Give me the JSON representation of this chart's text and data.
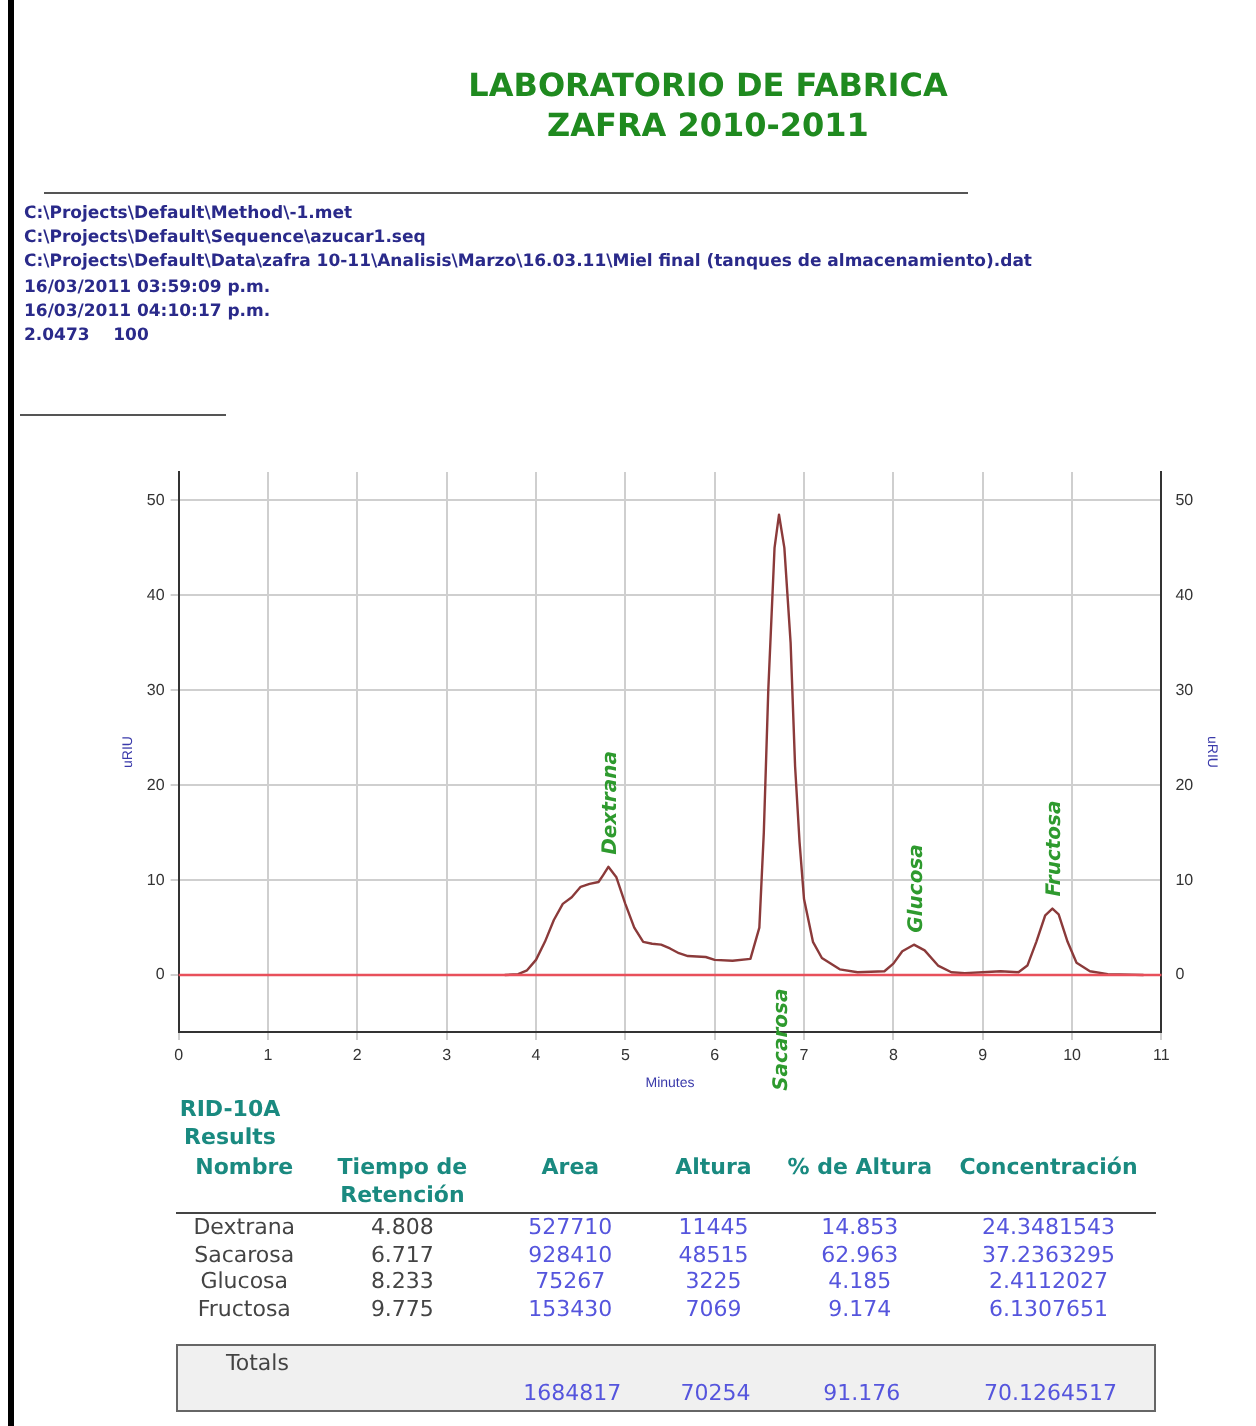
{
  "chart_data": {
    "type": "line",
    "title": "LABORATORIO DE FABRICA",
    "subtitle": "ZAFRA 2010-2011",
    "xlabel": "Minutes",
    "ylabel": "uRIU",
    "y2label": "uRIU",
    "xlim": [
      0,
      11
    ],
    "xticks": [
      0,
      1,
      2,
      3,
      4,
      5,
      6,
      7,
      8,
      9,
      10,
      11
    ],
    "ylim": [
      -6,
      53
    ],
    "yticks": [
      0,
      10,
      20,
      30,
      40,
      50
    ],
    "y2lim": [
      -6,
      53
    ],
    "y2ticks": [
      0,
      10,
      20,
      30,
      40,
      50
    ],
    "grid": true,
    "legend": false,
    "marker": "none",
    "line_style": "solid",
    "series": [
      {
        "color": "#8b3a3a",
        "x": [
          3.65,
          3.8,
          3.9,
          4.0,
          4.1,
          4.2,
          4.3,
          4.4,
          4.5,
          4.6,
          4.7,
          4.75,
          4.81,
          4.9,
          5.0,
          5.1,
          5.2,
          5.3,
          5.4,
          5.5,
          5.6,
          5.7,
          5.9,
          6.0,
          6.2,
          6.4,
          6.5,
          6.55,
          6.6,
          6.67,
          6.72,
          6.78,
          6.85,
          6.9,
          6.95,
          7.0,
          7.1,
          7.2,
          7.4,
          7.6,
          7.9,
          8.0,
          8.1,
          8.23,
          8.35,
          8.5,
          8.65,
          8.8,
          9.0,
          9.2,
          9.4,
          9.5,
          9.6,
          9.7,
          9.78,
          9.85,
          9.95,
          10.05,
          10.2,
          10.4,
          10.8
        ],
        "values": [
          0,
          0.1,
          0.5,
          1.6,
          3.5,
          5.8,
          7.5,
          8.2,
          9.3,
          9.6,
          9.8,
          10.5,
          11.4,
          10.3,
          7.5,
          5,
          3.5,
          3.3,
          3.2,
          2.8,
          2.3,
          2,
          1.9,
          1.6,
          1.5,
          1.7,
          5,
          15,
          30,
          45,
          48.5,
          45,
          35,
          22,
          14,
          8,
          3.5,
          1.8,
          0.6,
          0.3,
          0.4,
          1.2,
          2.5,
          3.2,
          2.6,
          1,
          0.3,
          0.2,
          0.3,
          0.4,
          0.3,
          1,
          3.5,
          6.3,
          7,
          6.4,
          3.5,
          1.3,
          0.4,
          0.1,
          0
        ]
      }
    ],
    "ref_lines": [
      {
        "axis": "y",
        "value": 0,
        "color": "#e8505b"
      }
    ],
    "annotations": [
      {
        "text": "Dextrana",
        "x": 4.808,
        "y": 11.4
      },
      {
        "text": "Sacarosa",
        "x": 6.717,
        "y": -1
      },
      {
        "text": "Glucosa",
        "x": 8.233,
        "y": 3.2
      },
      {
        "text": "Fructosa",
        "x": 9.775,
        "y": 7
      },
      "C:\\Projects\\Default\\Method\\-1.met",
      "C:\\Projects\\Default\\Sequence\\azucar1.seq",
      "C:\\Projects\\Default\\Data\\zafra 10-11\\Analisis\\Marzo\\16.03.11\\Miel final (tanques de almacenamiento).dat",
      "16/03/2011 03:59:09 p.m.",
      "16/03/2011 04:10:17 p.m.",
      "2.0473    100",
      "RID-10A",
      "Results",
      "Nombre",
      "Tiempo de Retención",
      "Area",
      "Altura",
      "% de Altura",
      "Concentración",
      "Dextrana",
      "4.808",
      "527710",
      "11445",
      "14.853",
      "24.3481543",
      "Sacarosa",
      "6.717",
      "928410",
      "48515",
      "62.963",
      "37.2363295",
      "Glucosa",
      "8.233",
      "75267",
      "3225",
      "4.185",
      "2.4112027",
      "Fructosa",
      "9.775",
      "153430",
      "7069",
      "9.174",
      "6.1307651",
      "Totals",
      "1684817",
      "70254",
      "91.176",
      "70.1264517"
    ]
  }
}
